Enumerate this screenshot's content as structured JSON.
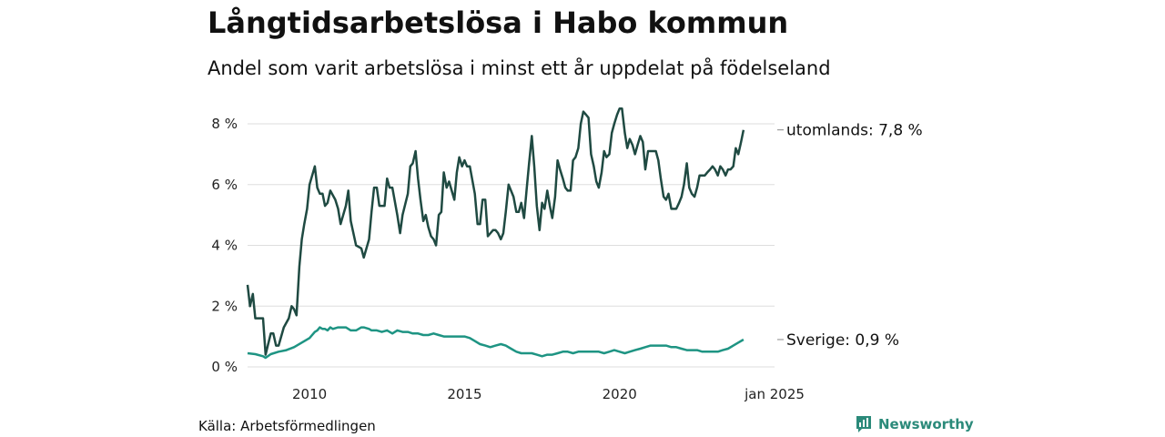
{
  "title": "Långtidsarbetslösa i Habo kommun",
  "subtitle": "Andel som varit arbetslösa i minst ett år uppdelat på födelseland",
  "source": "Källa: Arbetsförmedlingen",
  "brand": {
    "name": "Newsworthy",
    "icon": "newsworthy-logo-icon",
    "color": "#2b8a7a"
  },
  "chart_data": {
    "type": "line",
    "x_ticks": [
      {
        "x": 2010.0,
        "label": "2010"
      },
      {
        "x": 2015.0,
        "label": "2015"
      },
      {
        "x": 2020.0,
        "label": "2020"
      },
      {
        "x": 2025.0,
        "label": "jan 2025"
      }
    ],
    "y_ticks": [
      {
        "y": 0,
        "label": "0 %"
      },
      {
        "y": 2,
        "label": "2 %"
      },
      {
        "y": 4,
        "label": "4 %"
      },
      {
        "y": 6,
        "label": "6 %"
      },
      {
        "y": 8,
        "label": "8 %"
      }
    ],
    "ylim": [
      0,
      8
    ],
    "xlim": [
      2008.0,
      2025.0
    ],
    "grid": true,
    "series": [
      {
        "name": "utomlands",
        "end_label": "utomlands: 7,8 %",
        "color": "#1f4a42",
        "points": [
          [
            2008.0,
            2.7
          ],
          [
            2008.08,
            2.0
          ],
          [
            2008.17,
            2.4
          ],
          [
            2008.25,
            1.6
          ],
          [
            2008.5,
            1.6
          ],
          [
            2008.58,
            0.4
          ],
          [
            2008.75,
            1.1
          ],
          [
            2008.83,
            1.1
          ],
          [
            2008.92,
            0.7
          ],
          [
            2009.0,
            0.7
          ],
          [
            2009.17,
            1.3
          ],
          [
            2009.33,
            1.6
          ],
          [
            2009.42,
            2.0
          ],
          [
            2009.5,
            1.9
          ],
          [
            2009.58,
            1.7
          ],
          [
            2009.67,
            3.3
          ],
          [
            2009.75,
            4.2
          ],
          [
            2009.83,
            4.7
          ],
          [
            2009.92,
            5.2
          ],
          [
            2010.0,
            6.0
          ],
          [
            2010.17,
            6.6
          ],
          [
            2010.25,
            5.9
          ],
          [
            2010.33,
            5.7
          ],
          [
            2010.42,
            5.7
          ],
          [
            2010.5,
            5.3
          ],
          [
            2010.58,
            5.4
          ],
          [
            2010.67,
            5.8
          ],
          [
            2010.83,
            5.5
          ],
          [
            2010.92,
            5.2
          ],
          [
            2011.0,
            4.7
          ],
          [
            2011.17,
            5.3
          ],
          [
            2011.25,
            5.8
          ],
          [
            2011.33,
            4.8
          ],
          [
            2011.5,
            4.0
          ],
          [
            2011.67,
            3.9
          ],
          [
            2011.75,
            3.6
          ],
          [
            2011.92,
            4.2
          ],
          [
            2012.0,
            5.1
          ],
          [
            2012.08,
            5.9
          ],
          [
            2012.17,
            5.9
          ],
          [
            2012.25,
            5.3
          ],
          [
            2012.42,
            5.3
          ],
          [
            2012.5,
            6.2
          ],
          [
            2012.58,
            5.9
          ],
          [
            2012.67,
            5.9
          ],
          [
            2012.83,
            5.0
          ],
          [
            2012.92,
            4.4
          ],
          [
            2013.0,
            5.0
          ],
          [
            2013.17,
            5.7
          ],
          [
            2013.25,
            6.6
          ],
          [
            2013.33,
            6.7
          ],
          [
            2013.42,
            7.1
          ],
          [
            2013.5,
            6.2
          ],
          [
            2013.58,
            5.5
          ],
          [
            2013.67,
            4.8
          ],
          [
            2013.75,
            5.0
          ],
          [
            2013.83,
            4.6
          ],
          [
            2013.92,
            4.3
          ],
          [
            2014.0,
            4.2
          ],
          [
            2014.08,
            4.0
          ],
          [
            2014.17,
            5.0
          ],
          [
            2014.25,
            5.1
          ],
          [
            2014.33,
            6.4
          ],
          [
            2014.42,
            5.9
          ],
          [
            2014.5,
            6.1
          ],
          [
            2014.67,
            5.5
          ],
          [
            2014.75,
            6.4
          ],
          [
            2014.83,
            6.9
          ],
          [
            2014.92,
            6.6
          ],
          [
            2015.0,
            6.8
          ],
          [
            2015.08,
            6.6
          ],
          [
            2015.17,
            6.6
          ],
          [
            2015.33,
            5.7
          ],
          [
            2015.42,
            4.7
          ],
          [
            2015.5,
            4.7
          ],
          [
            2015.58,
            5.5
          ],
          [
            2015.67,
            5.5
          ],
          [
            2015.75,
            4.3
          ],
          [
            2015.92,
            4.5
          ],
          [
            2016.0,
            4.5
          ],
          [
            2016.08,
            4.4
          ],
          [
            2016.17,
            4.2
          ],
          [
            2016.25,
            4.4
          ],
          [
            2016.33,
            5.1
          ],
          [
            2016.42,
            6.0
          ],
          [
            2016.58,
            5.6
          ],
          [
            2016.67,
            5.1
          ],
          [
            2016.75,
            5.1
          ],
          [
            2016.83,
            5.4
          ],
          [
            2016.92,
            4.9
          ],
          [
            2017.0,
            5.8
          ],
          [
            2017.08,
            6.7
          ],
          [
            2017.17,
            7.6
          ],
          [
            2017.25,
            6.6
          ],
          [
            2017.33,
            5.3
          ],
          [
            2017.42,
            4.5
          ],
          [
            2017.5,
            5.4
          ],
          [
            2017.58,
            5.2
          ],
          [
            2017.67,
            5.8
          ],
          [
            2017.75,
            5.3
          ],
          [
            2017.83,
            4.9
          ],
          [
            2017.92,
            5.6
          ],
          [
            2018.0,
            6.8
          ],
          [
            2018.08,
            6.5
          ],
          [
            2018.17,
            6.2
          ],
          [
            2018.25,
            5.9
          ],
          [
            2018.33,
            5.8
          ],
          [
            2018.42,
            5.8
          ],
          [
            2018.5,
            6.8
          ],
          [
            2018.58,
            6.9
          ],
          [
            2018.67,
            7.2
          ],
          [
            2018.75,
            8.0
          ],
          [
            2018.83,
            8.4
          ],
          [
            2018.92,
            8.3
          ],
          [
            2019.0,
            8.2
          ],
          [
            2019.08,
            7.0
          ],
          [
            2019.17,
            6.6
          ],
          [
            2019.25,
            6.1
          ],
          [
            2019.33,
            5.9
          ],
          [
            2019.42,
            6.4
          ],
          [
            2019.5,
            7.1
          ],
          [
            2019.58,
            6.9
          ],
          [
            2019.67,
            7.0
          ],
          [
            2019.75,
            7.7
          ],
          [
            2019.83,
            8.0
          ],
          [
            2019.92,
            8.3
          ],
          [
            2020.0,
            8.5
          ],
          [
            2020.08,
            8.5
          ],
          [
            2020.17,
            7.7
          ],
          [
            2020.25,
            7.2
          ],
          [
            2020.33,
            7.5
          ],
          [
            2020.42,
            7.3
          ],
          [
            2020.5,
            7.0
          ],
          [
            2020.58,
            7.3
          ],
          [
            2020.67,
            7.6
          ],
          [
            2020.75,
            7.4
          ],
          [
            2020.83,
            6.5
          ],
          [
            2020.92,
            7.1
          ],
          [
            2021.0,
            7.1
          ],
          [
            2021.08,
            7.1
          ],
          [
            2021.17,
            7.1
          ],
          [
            2021.25,
            6.8
          ],
          [
            2021.33,
            6.2
          ],
          [
            2021.42,
            5.6
          ],
          [
            2021.5,
            5.5
          ],
          [
            2021.58,
            5.7
          ],
          [
            2021.67,
            5.2
          ],
          [
            2021.83,
            5.2
          ],
          [
            2021.92,
            5.4
          ],
          [
            2022.0,
            5.6
          ],
          [
            2022.08,
            6.0
          ],
          [
            2022.17,
            6.7
          ],
          [
            2022.25,
            5.9
          ],
          [
            2022.33,
            5.7
          ],
          [
            2022.42,
            5.6
          ],
          [
            2022.5,
            5.9
          ],
          [
            2022.58,
            6.3
          ],
          [
            2022.67,
            6.3
          ],
          [
            2022.75,
            6.3
          ],
          [
            2022.83,
            6.4
          ],
          [
            2022.92,
            6.5
          ],
          [
            2023.0,
            6.6
          ],
          [
            2023.08,
            6.5
          ],
          [
            2023.17,
            6.3
          ],
          [
            2023.25,
            6.6
          ],
          [
            2023.33,
            6.5
          ],
          [
            2023.42,
            6.3
          ],
          [
            2023.5,
            6.5
          ],
          [
            2023.58,
            6.5
          ],
          [
            2023.67,
            6.6
          ],
          [
            2023.75,
            7.2
          ],
          [
            2023.83,
            7.0
          ],
          [
            2023.92,
            7.4
          ],
          [
            2024.0,
            7.8
          ]
        ]
      },
      {
        "name": "Sverige",
        "end_label": "Sverige: 0,9 %",
        "color": "#1e9483",
        "points": [
          [
            2008.0,
            0.45
          ],
          [
            2008.25,
            0.42
          ],
          [
            2008.5,
            0.35
          ],
          [
            2008.58,
            0.3
          ],
          [
            2008.75,
            0.42
          ],
          [
            2009.0,
            0.5
          ],
          [
            2009.25,
            0.55
          ],
          [
            2009.5,
            0.65
          ],
          [
            2009.75,
            0.8
          ],
          [
            2010.0,
            0.95
          ],
          [
            2010.17,
            1.15
          ],
          [
            2010.25,
            1.2
          ],
          [
            2010.33,
            1.3
          ],
          [
            2010.42,
            1.25
          ],
          [
            2010.5,
            1.25
          ],
          [
            2010.58,
            1.2
          ],
          [
            2010.67,
            1.3
          ],
          [
            2010.75,
            1.25
          ],
          [
            2010.92,
            1.3
          ],
          [
            2011.0,
            1.3
          ],
          [
            2011.17,
            1.3
          ],
          [
            2011.33,
            1.2
          ],
          [
            2011.5,
            1.2
          ],
          [
            2011.67,
            1.3
          ],
          [
            2011.75,
            1.3
          ],
          [
            2011.92,
            1.25
          ],
          [
            2012.0,
            1.2
          ],
          [
            2012.17,
            1.2
          ],
          [
            2012.33,
            1.15
          ],
          [
            2012.5,
            1.2
          ],
          [
            2012.67,
            1.1
          ],
          [
            2012.83,
            1.2
          ],
          [
            2013.0,
            1.15
          ],
          [
            2013.17,
            1.15
          ],
          [
            2013.33,
            1.1
          ],
          [
            2013.5,
            1.1
          ],
          [
            2013.67,
            1.05
          ],
          [
            2013.83,
            1.05
          ],
          [
            2014.0,
            1.1
          ],
          [
            2014.17,
            1.05
          ],
          [
            2014.33,
            1.0
          ],
          [
            2014.5,
            1.0
          ],
          [
            2014.67,
            1.0
          ],
          [
            2014.83,
            1.0
          ],
          [
            2015.0,
            1.0
          ],
          [
            2015.17,
            0.95
          ],
          [
            2015.33,
            0.85
          ],
          [
            2015.5,
            0.75
          ],
          [
            2015.67,
            0.7
          ],
          [
            2015.83,
            0.65
          ],
          [
            2016.0,
            0.7
          ],
          [
            2016.17,
            0.75
          ],
          [
            2016.33,
            0.7
          ],
          [
            2016.5,
            0.6
          ],
          [
            2016.67,
            0.5
          ],
          [
            2016.83,
            0.45
          ],
          [
            2017.0,
            0.45
          ],
          [
            2017.17,
            0.45
          ],
          [
            2017.33,
            0.4
          ],
          [
            2017.5,
            0.35
          ],
          [
            2017.67,
            0.4
          ],
          [
            2017.83,
            0.4
          ],
          [
            2018.0,
            0.45
          ],
          [
            2018.17,
            0.5
          ],
          [
            2018.33,
            0.5
          ],
          [
            2018.5,
            0.45
          ],
          [
            2018.67,
            0.5
          ],
          [
            2018.83,
            0.5
          ],
          [
            2019.0,
            0.5
          ],
          [
            2019.17,
            0.5
          ],
          [
            2019.33,
            0.5
          ],
          [
            2019.5,
            0.45
          ],
          [
            2019.67,
            0.5
          ],
          [
            2019.83,
            0.55
          ],
          [
            2020.0,
            0.5
          ],
          [
            2020.17,
            0.45
          ],
          [
            2020.33,
            0.5
          ],
          [
            2020.5,
            0.55
          ],
          [
            2020.67,
            0.6
          ],
          [
            2020.83,
            0.65
          ],
          [
            2021.0,
            0.7
          ],
          [
            2021.17,
            0.7
          ],
          [
            2021.33,
            0.7
          ],
          [
            2021.5,
            0.7
          ],
          [
            2021.67,
            0.65
          ],
          [
            2021.83,
            0.65
          ],
          [
            2022.0,
            0.6
          ],
          [
            2022.17,
            0.55
          ],
          [
            2022.33,
            0.55
          ],
          [
            2022.5,
            0.55
          ],
          [
            2022.67,
            0.5
          ],
          [
            2022.83,
            0.5
          ],
          [
            2023.0,
            0.5
          ],
          [
            2023.17,
            0.5
          ],
          [
            2023.33,
            0.55
          ],
          [
            2023.5,
            0.6
          ],
          [
            2023.67,
            0.7
          ],
          [
            2023.83,
            0.8
          ],
          [
            2024.0,
            0.9
          ]
        ]
      }
    ]
  }
}
